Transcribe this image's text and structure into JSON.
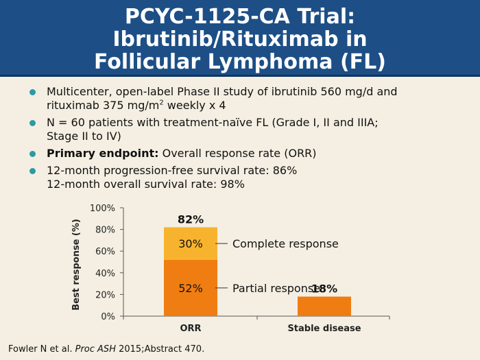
{
  "title": {
    "line1": "PCYC-1125-CA Trial:",
    "line2": "Ibrutinib/Rituximab in",
    "line3": "Follicular Lymphoma (FL)"
  },
  "bullets": [
    {
      "line1": "Multicenter, open-label Phase II study of ibrutinib 560 mg/d and",
      "line2_pre": "rituximab 375 mg/m",
      "line2_sup": "2",
      "line2_post": " weekly x 4"
    },
    {
      "line1": "N = 60 patients with treatment-naïve FL (Grade I, II and IIIA;",
      "line2": "Stage II to IV)"
    },
    {
      "bold": "Primary endpoint:",
      "rest": " Overall response rate (ORR)"
    },
    {
      "line1": "12-month progression-free survival rate: 86%",
      "line2": "12-month overall survival rate: 98%"
    }
  ],
  "chart_data": {
    "type": "bar",
    "stacked": true,
    "categories": [
      "ORR",
      "Stable disease"
    ],
    "series": [
      {
        "name": "Partial response",
        "values": [
          52,
          18
        ],
        "color": "#f07d12"
      },
      {
        "name": "Complete response",
        "values": [
          30,
          0
        ],
        "color": "#f8b32e"
      }
    ],
    "totals": [
      "82%",
      "18%"
    ],
    "segment_labels": [
      "52%",
      "30%"
    ],
    "ylabel": "Best response (%)",
    "ylim": [
      0,
      100
    ],
    "yticks": [
      0,
      20,
      40,
      60,
      80,
      100
    ],
    "ytick_labels": [
      "0%",
      "20%",
      "40%",
      "60%",
      "80%",
      "100%"
    ],
    "legend_placement": "right"
  },
  "footer": {
    "pre": "Fowler N et al. ",
    "journal": "Proc ASH",
    "post": " 2015;Abstract 470."
  }
}
